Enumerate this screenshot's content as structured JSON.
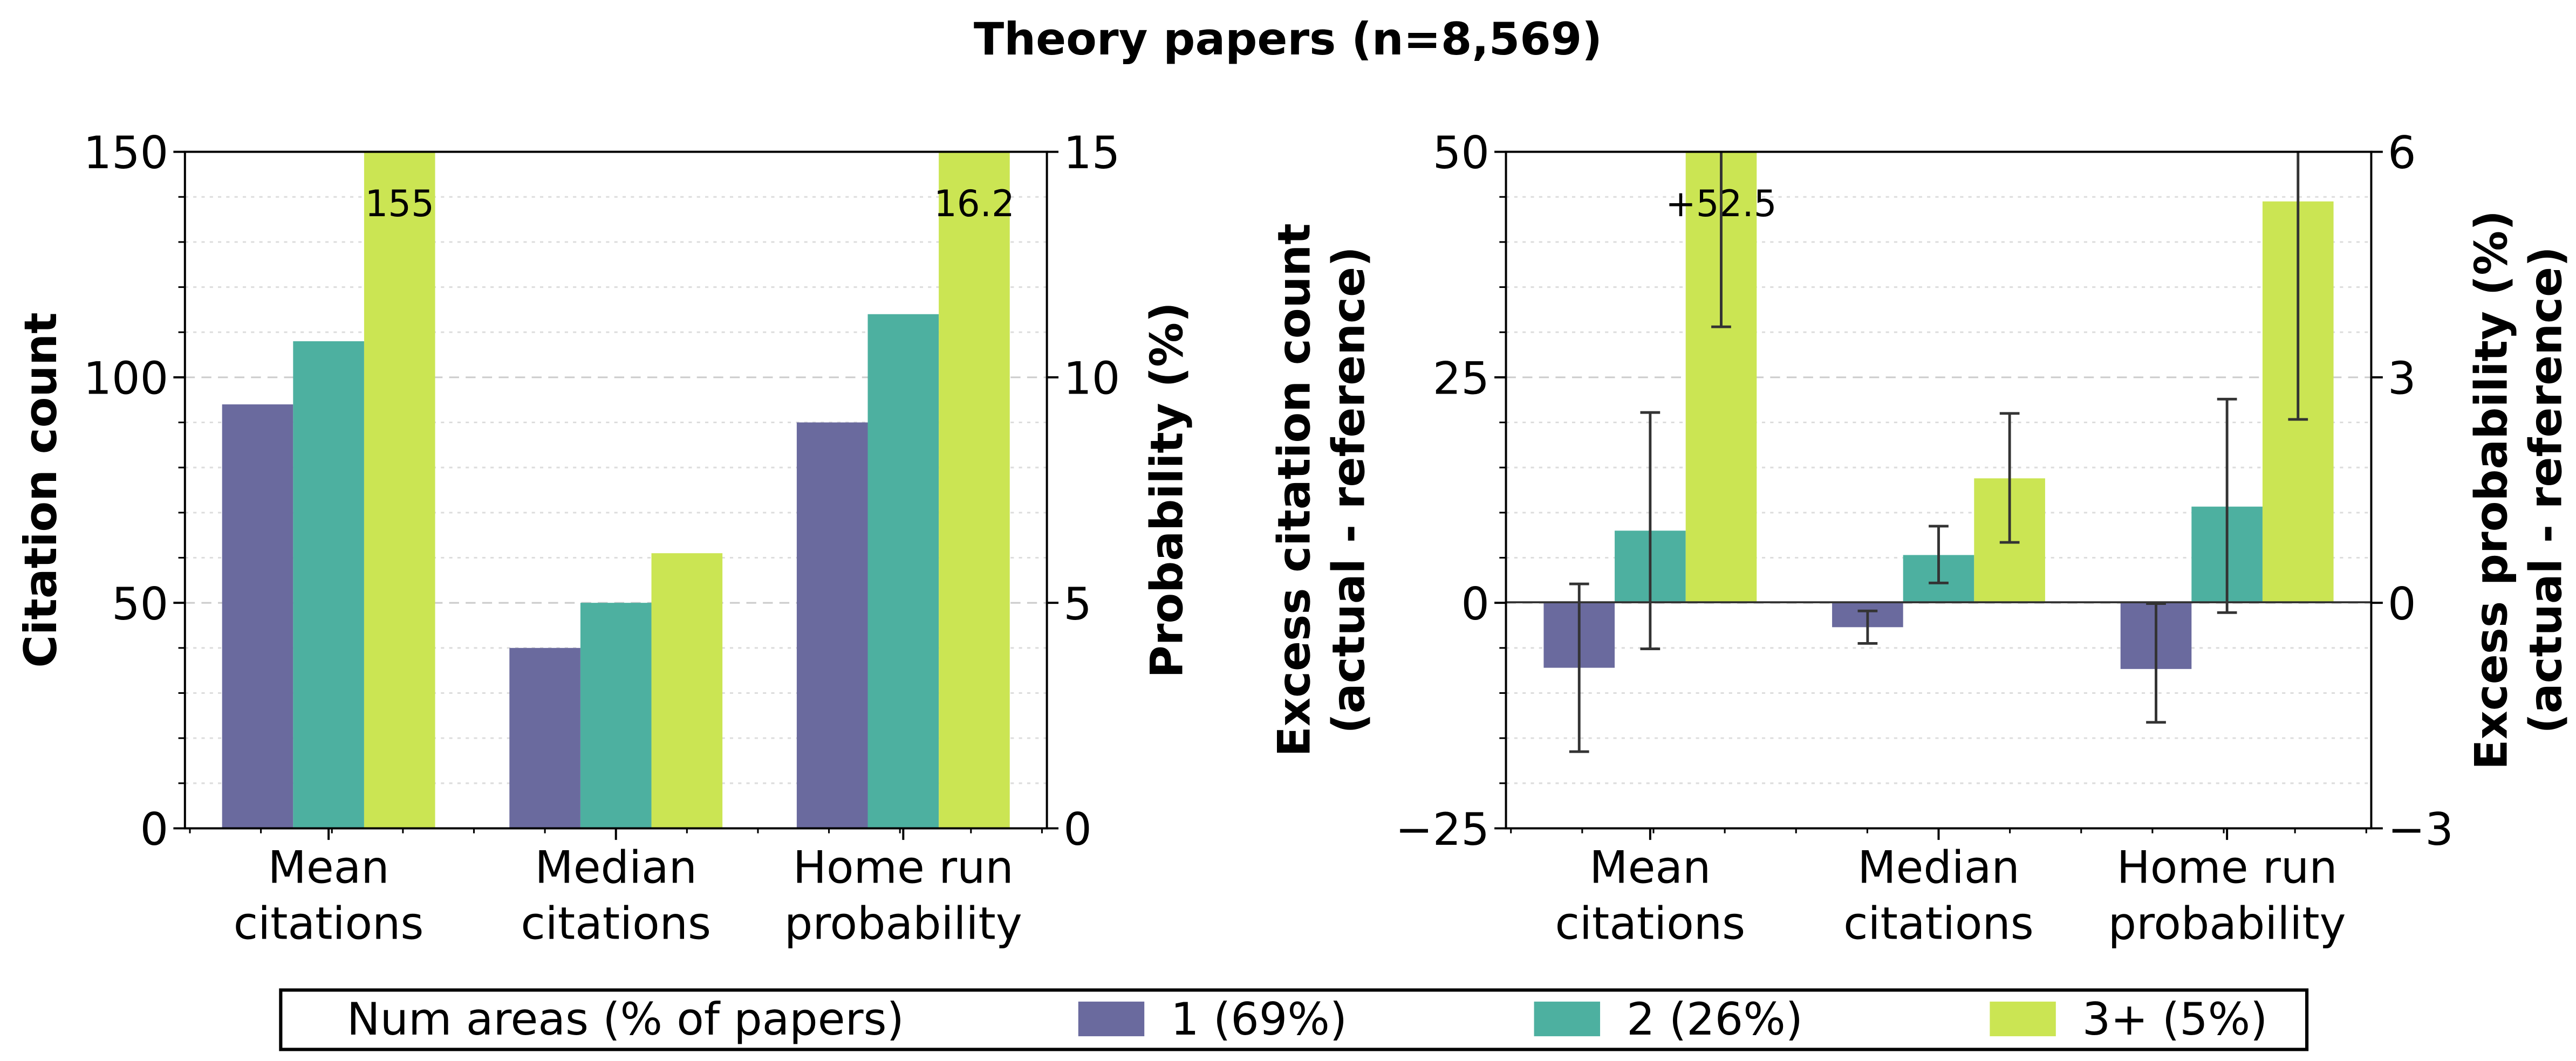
{
  "title": "Theory papers (n=8,569)",
  "colors": {
    "series1": "#6A6A9E",
    "series2": "#4DB0A0",
    "series3": "#CBE553",
    "errorbar": "#333333"
  },
  "legend": {
    "title": "Num areas (% of papers)",
    "items": [
      {
        "label": "1 (69%)",
        "color": "#6A6A9E"
      },
      {
        "label": "2 (26%)",
        "color": "#4DB0A0"
      },
      {
        "label": "3+ (5%)",
        "color": "#CBE553"
      }
    ]
  },
  "chart_data": [
    {
      "type": "bar",
      "title": "",
      "categories": [
        "Mean citations",
        "Median citations",
        "Home run probability"
      ],
      "category_lines": [
        [
          "Mean",
          "citations"
        ],
        [
          "Median",
          "citations"
        ],
        [
          "Home run",
          "probability"
        ]
      ],
      "ylabel": "Citation count",
      "ylabel_right": "Probability (%)",
      "ylim": [
        0,
        150
      ],
      "ylim_right": [
        0,
        15
      ],
      "yticks": [
        0,
        50,
        100,
        150
      ],
      "yticks_right": [
        0,
        5,
        10,
        15
      ],
      "grid": true,
      "series": [
        {
          "name": "1 (69%)",
          "values": [
            94,
            40,
            9.0
          ],
          "axis": [
            "left",
            "left",
            "right"
          ]
        },
        {
          "name": "2 (26%)",
          "values": [
            108,
            50,
            11.4
          ],
          "axis": [
            "left",
            "left",
            "right"
          ]
        },
        {
          "name": "3+ (5%)",
          "values": [
            155,
            61,
            16.2
          ],
          "axis": [
            "left",
            "left",
            "right"
          ]
        }
      ],
      "annotations": [
        {
          "text": "155",
          "category": "Mean citations",
          "series": "3+ (5%)"
        },
        {
          "text": "16.2",
          "category": "Home run probability",
          "series": "3+ (5%)"
        }
      ]
    },
    {
      "type": "bar",
      "title": "",
      "categories": [
        "Mean citations",
        "Median citations",
        "Home run probability"
      ],
      "category_lines": [
        [
          "Mean",
          "citations"
        ],
        [
          "Median",
          "citations"
        ],
        [
          "Home run",
          "probability"
        ]
      ],
      "ylabel": "Excess citation count (actual - reference)",
      "ylabel_lines": [
        "Excess citation count",
        "(actual - reference)"
      ],
      "ylabel_right": "Excess probability (%) (actual - reference)",
      "ylabel_right_lines": [
        "Excess probability (%)",
        "(actual - reference)"
      ],
      "ylim": [
        -25,
        50
      ],
      "ylim_right": [
        -3,
        6
      ],
      "yticks": [
        -25,
        0,
        25,
        50
      ],
      "ytick_labels": [
        "−25",
        "0",
        "25",
        "50"
      ],
      "yticks_right": [
        -3,
        0,
        3,
        6
      ],
      "ytick_labels_right": [
        "−3",
        "0",
        "3",
        "6"
      ],
      "grid": true,
      "series": [
        {
          "name": "1 (69%)",
          "values": [
            -7.2,
            -2.7,
            -0.88
          ],
          "err_low": [
            -16.5,
            -4.5,
            -1.59
          ],
          "err_high": [
            2.1,
            -0.9,
            -0.01
          ]
        },
        {
          "name": "2 (26%)",
          "values": [
            8.0,
            5.3,
            1.28
          ],
          "err_low": [
            -5.1,
            2.2,
            -0.13
          ],
          "err_high": [
            21.1,
            8.5,
            2.71
          ]
        },
        {
          "name": "3+ (5%)",
          "values": [
            52.5,
            13.8,
            5.34
          ],
          "err_low": [
            30.6,
            6.7,
            2.44
          ],
          "err_high": [
            60,
            21.0,
            7.0
          ]
        }
      ],
      "annotations": [
        {
          "text": "+52.5",
          "category": "Mean citations",
          "series": "3+ (5%)"
        }
      ]
    }
  ]
}
